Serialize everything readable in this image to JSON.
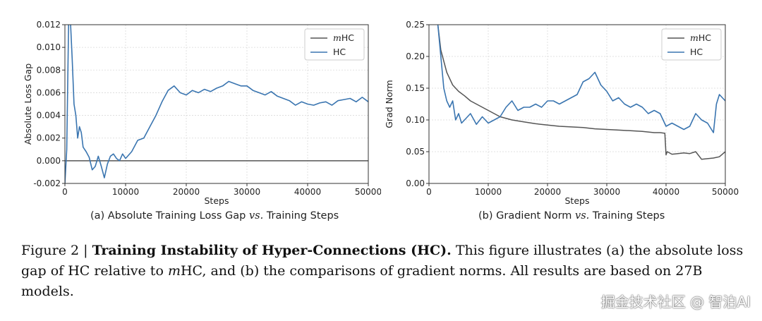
{
  "chart_data": [
    {
      "type": "line",
      "id": "a",
      "xlabel": "Steps",
      "ylabel": "Absolute Loss Gap",
      "xlim": [
        0,
        50000
      ],
      "ylim": [
        -0.002,
        0.012
      ],
      "xticks": [
        0,
        10000,
        20000,
        30000,
        40000,
        50000
      ],
      "xtick_labels": [
        "0",
        "10000",
        "20000",
        "30000",
        "40000",
        "50000"
      ],
      "yticks": [
        -0.002,
        0,
        0.002,
        0.004,
        0.006,
        0.008,
        0.01,
        0.012
      ],
      "ytick_labels": [
        "-0.002",
        "0.000",
        "0.002",
        "0.004",
        "0.006",
        "0.008",
        "0.010",
        "0.012"
      ],
      "grid": true,
      "legend_position": "top-right",
      "series": [
        {
          "name": "mHC",
          "color": "#555555",
          "x": [
            0,
            50000
          ],
          "y": [
            0,
            0
          ]
        },
        {
          "name": "HC",
          "color": "#3a75b0",
          "x": [
            0,
            300,
            600,
            900,
            1200,
            1500,
            1800,
            2100,
            2400,
            2700,
            3000,
            3500,
            4000,
            4500,
            5000,
            5500,
            6000,
            6500,
            7000,
            7500,
            8000,
            8500,
            9000,
            9500,
            10000,
            11000,
            12000,
            13000,
            14000,
            15000,
            16000,
            17000,
            18000,
            19000,
            20000,
            21000,
            22000,
            23000,
            24000,
            25000,
            26000,
            27000,
            28000,
            29000,
            30000,
            31000,
            32000,
            33000,
            34000,
            35000,
            36000,
            37000,
            38000,
            39000,
            40000,
            41000,
            42000,
            43000,
            44000,
            45000,
            46000,
            47000,
            48000,
            49000,
            50000
          ],
          "y": [
            -0.002,
            0.001,
            0.012,
            0.0125,
            0.009,
            0.005,
            0.004,
            0.002,
            0.003,
            0.0025,
            0.0012,
            0.0008,
            0.0003,
            -0.0008,
            -0.0005,
            0.0004,
            -0.0005,
            -0.0015,
            -0.0003,
            0.0004,
            0.0006,
            0.0002,
            0.0,
            0.0006,
            0.0002,
            0.0008,
            0.0018,
            0.002,
            0.003,
            0.004,
            0.0052,
            0.0062,
            0.0066,
            0.006,
            0.0058,
            0.0062,
            0.006,
            0.0063,
            0.0061,
            0.0064,
            0.0066,
            0.007,
            0.0068,
            0.0066,
            0.0066,
            0.0062,
            0.006,
            0.0058,
            0.0061,
            0.0057,
            0.0055,
            0.0053,
            0.0049,
            0.0052,
            0.005,
            0.0049,
            0.0051,
            0.0052,
            0.0049,
            0.0053,
            0.0054,
            0.0055,
            0.0052,
            0.0056,
            0.0052
          ]
        }
      ]
    },
    {
      "type": "line",
      "id": "b",
      "xlabel": "Steps",
      "ylabel": "Grad Norm",
      "xlim": [
        0,
        50000
      ],
      "ylim": [
        0,
        0.25
      ],
      "xticks": [
        0,
        10000,
        20000,
        30000,
        40000,
        50000
      ],
      "xtick_labels": [
        "0",
        "10000",
        "20000",
        "30000",
        "40000",
        "50000"
      ],
      "yticks": [
        0,
        0.05,
        0.1,
        0.15,
        0.2,
        0.25
      ],
      "ytick_labels": [
        "0.00",
        "0.05",
        "0.10",
        "0.15",
        "0.20",
        "0.25"
      ],
      "grid": true,
      "legend_position": "top-right",
      "series": [
        {
          "name": "mHC",
          "color": "#555555",
          "x": [
            1500,
            2000,
            3000,
            4000,
            5000,
            6000,
            7000,
            8000,
            9000,
            10000,
            12000,
            14000,
            16000,
            18000,
            20000,
            22000,
            24000,
            26000,
            28000,
            30000,
            32000,
            34000,
            36000,
            38000,
            39000,
            39800,
            40000,
            40200,
            41000,
            42000,
            43000,
            44000,
            45000,
            46000,
            47000,
            48000,
            49000,
            50000
          ],
          "y": [
            0.25,
            0.21,
            0.175,
            0.155,
            0.145,
            0.138,
            0.13,
            0.125,
            0.12,
            0.115,
            0.105,
            0.1,
            0.097,
            0.094,
            0.092,
            0.09,
            0.089,
            0.088,
            0.086,
            0.085,
            0.084,
            0.083,
            0.082,
            0.08,
            0.08,
            0.079,
            0.045,
            0.05,
            0.046,
            0.047,
            0.048,
            0.047,
            0.05,
            0.038,
            0.039,
            0.04,
            0.042,
            0.05
          ]
        },
        {
          "name": "HC",
          "color": "#3a75b0",
          "x": [
            1500,
            2000,
            2500,
            3000,
            3500,
            4000,
            4500,
            5000,
            5500,
            6000,
            7000,
            8000,
            9000,
            10000,
            11000,
            12000,
            13000,
            14000,
            15000,
            16000,
            17000,
            18000,
            19000,
            20000,
            21000,
            22000,
            23000,
            24000,
            25000,
            26000,
            27000,
            28000,
            29000,
            30000,
            31000,
            32000,
            33000,
            34000,
            35000,
            36000,
            37000,
            38000,
            39000,
            40000,
            41000,
            42000,
            43000,
            44000,
            45000,
            46000,
            47000,
            48000,
            48500,
            49000,
            49500,
            50000
          ],
          "y": [
            0.25,
            0.2,
            0.15,
            0.13,
            0.12,
            0.13,
            0.1,
            0.11,
            0.095,
            0.1,
            0.11,
            0.093,
            0.105,
            0.095,
            0.1,
            0.105,
            0.12,
            0.13,
            0.115,
            0.12,
            0.12,
            0.125,
            0.12,
            0.13,
            0.13,
            0.125,
            0.13,
            0.135,
            0.14,
            0.16,
            0.165,
            0.175,
            0.155,
            0.145,
            0.13,
            0.135,
            0.125,
            0.12,
            0.125,
            0.12,
            0.11,
            0.115,
            0.11,
            0.09,
            0.095,
            0.09,
            0.085,
            0.09,
            0.11,
            0.1,
            0.095,
            0.08,
            0.125,
            0.14,
            0.135,
            0.13
          ]
        }
      ]
    }
  ],
  "subcaptions": {
    "a_prefix": "(a) Absolute Training Loss Gap",
    "a_vs": "vs.",
    "a_suffix": "Training Steps",
    "b_prefix": "(b) Gradient Norm",
    "b_vs": "vs.",
    "b_suffix": "Training Steps"
  },
  "caption": {
    "label": "Figure 2 |",
    "title": "Training Instability of Hyper-Connections (HC).",
    "text1": "This figure illustrates (a) the absolute loss gap of HC relative to",
    "m1": "m",
    "text2": "HC, and (b) the comparisons of gradient norms.  All results are based on 27B models."
  },
  "watermark": "掘金技术社区 @ 智泊AI",
  "legend": {
    "mhc_italic": "m",
    "mhc_rest": "HC",
    "hc": "HC"
  }
}
